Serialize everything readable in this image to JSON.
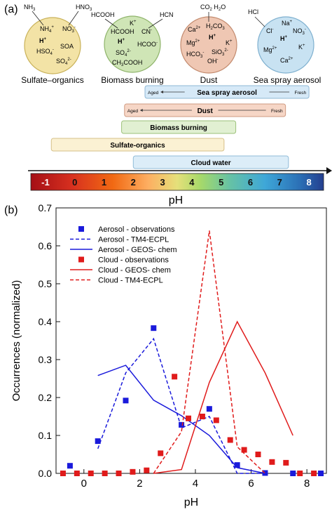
{
  "panel_a": {
    "label": "(a)",
    "circles": [
      {
        "title": "Sulfate–organics",
        "fill": "#f3e3a6",
        "edge": "#c9b25a",
        "top_species": [
          "NH",
          "3",
          "HNO",
          "3"
        ],
        "ions": [
          "NH4+",
          "NO3-",
          "H+",
          "SOA",
          "HSO4-",
          "SO42-"
        ]
      },
      {
        "title": "Biomass burning",
        "fill": "#cfe5b6",
        "edge": "#8fb46b",
        "top_species": [
          "HCOOH",
          "HCN"
        ],
        "ions": [
          "K+",
          "HCOOH",
          "CN-",
          "H+",
          "HCOO-",
          "SO42-",
          "CH3COOH"
        ]
      },
      {
        "title": "Dust",
        "fill": "#efc7b3",
        "edge": "#c38b6f",
        "top_species": [
          "CO2 H2O"
        ],
        "ions": [
          "H2CO3",
          "Ca2+",
          "H+",
          "Mg2+",
          "K+",
          "HCO3-",
          "SiO32-",
          "OH-"
        ]
      },
      {
        "title": "Sea spray aerosol",
        "fill": "#c8e2f2",
        "edge": "#7fb0cf",
        "top_species": [
          "HCl"
        ],
        "ions": [
          "Na+",
          "Cl-",
          "H+",
          "NO3-",
          "K+",
          "Mg2+",
          "Ca2+"
        ]
      }
    ],
    "bars": [
      {
        "label": "Sea spray aerosol",
        "left_note": "Aged",
        "right_note": "Fresh",
        "color": "#d6e9f7",
        "edge": "#8fb8d6",
        "from": 2.4,
        "to": 8.0
      },
      {
        "label": "Dust",
        "left_note": "Aged",
        "right_note": "Fresh",
        "color": "#f6d6c6",
        "edge": "#cf9a80",
        "from": 1.7,
        "to": 7.2
      },
      {
        "label": "Biomass burning",
        "left_note": "",
        "right_note": "",
        "color": "#e1f0d2",
        "edge": "#9cc17a",
        "from": 1.6,
        "to": 5.5
      },
      {
        "label": "Sulfate-organics",
        "left_note": "",
        "right_note": "",
        "color": "#fbf1d3",
        "edge": "#d6c089",
        "from": -0.8,
        "to": 5.1
      },
      {
        "label": "Cloud water",
        "left_note": "",
        "right_note": "",
        "color": "#dcedf8",
        "edge": "#90bcd8",
        "from": 2.0,
        "to": 7.3
      }
    ],
    "ph_scale": [
      "-1",
      "0",
      "1",
      "2",
      "3",
      "4",
      "5",
      "6",
      "7",
      "8"
    ],
    "ph_label": "pH"
  },
  "chart_data": {
    "type": "line",
    "panel_label": "(b)",
    "xlabel": "pH",
    "ylabel": "Occurrences (normalized)",
    "xlim": [
      -1,
      8.7
    ],
    "ylim": [
      0,
      0.7
    ],
    "xticks": [
      0,
      2,
      4,
      6,
      8
    ],
    "yticks": [
      0.0,
      0.1,
      0.2,
      0.3,
      0.4,
      0.5,
      0.6,
      0.7
    ],
    "legend_position": "top-left",
    "series": [
      {
        "name": "Aerosol - observations",
        "style": "square",
        "color": "#1a1adb",
        "x": [
          -0.5,
          0.5,
          1.5,
          2.5,
          3.5,
          4.5,
          5.5,
          6.5,
          7.5,
          8.5
        ],
        "y": [
          0.02,
          0.085,
          0.192,
          0.383,
          0.128,
          0.17,
          0.022,
          0.001,
          0.0,
          0.0
        ]
      },
      {
        "name": "Aerosol - TM4-ECPL",
        "style": "dashed",
        "color": "#1a1adb",
        "x": [
          0.5,
          1.5,
          2.5,
          3.5,
          4.5,
          5.5,
          6.5
        ],
        "y": [
          0.065,
          0.265,
          0.355,
          0.12,
          0.15,
          0.0,
          0.0
        ]
      },
      {
        "name": "Aerosol - GEOS- chem",
        "style": "solid",
        "color": "#1a1adb",
        "x": [
          0.5,
          1.5,
          2.5,
          3.5,
          4.5,
          5.5,
          6.5
        ],
        "y": [
          0.258,
          0.285,
          0.193,
          0.152,
          0.1,
          0.015,
          0.0
        ]
      },
      {
        "name": "Cloud - observations",
        "style": "square",
        "color": "#e01b1b",
        "x": [
          -0.75,
          -0.25,
          0.25,
          0.75,
          1.25,
          1.75,
          2.25,
          2.75,
          3.25,
          3.75,
          4.25,
          4.75,
          5.25,
          5.75,
          6.25,
          6.75,
          7.25,
          7.75,
          8.25
        ],
        "y": [
          0.0,
          0.0,
          0.0,
          0.0,
          0.0,
          0.004,
          0.008,
          0.053,
          0.255,
          0.145,
          0.15,
          0.14,
          0.088,
          0.062,
          0.05,
          0.03,
          0.028,
          0.0,
          0.0
        ]
      },
      {
        "name": "Cloud - GEOS- chem",
        "style": "solid",
        "color": "#e01b1b",
        "x": [
          2.5,
          3.5,
          4.5,
          5.5,
          6.5,
          7.5
        ],
        "y": [
          0.0,
          0.01,
          0.24,
          0.4,
          0.265,
          0.1
        ]
      },
      {
        "name": "Cloud - TM4-ECPL",
        "style": "dashed",
        "color": "#e01b1b",
        "x": [
          2.5,
          3.5,
          4.5,
          5.5,
          6.5
        ],
        "y": [
          0.0,
          0.11,
          0.64,
          0.07,
          0.0
        ]
      }
    ]
  }
}
